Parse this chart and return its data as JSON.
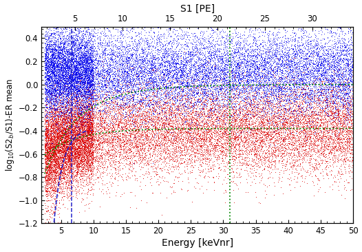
{
  "xlabel": "Energy [keVnr]",
  "ylabel": "log$_{10}$(S2$_b$/S1)-ER mean",
  "xlabel_top": "S1 [PE]",
  "xlim": [
    2,
    50
  ],
  "ylim": [
    -1.2,
    0.5
  ],
  "xticks": [
    5,
    10,
    15,
    20,
    25,
    30,
    35,
    40,
    45,
    50
  ],
  "yticks": [
    -1.2,
    -1.0,
    -0.8,
    -0.6,
    -0.4,
    -0.2,
    0.0,
    0.2,
    0.4
  ],
  "xticks_top": [
    5,
    10,
    15,
    20,
    25,
    30
  ],
  "pe_tick_energies": [
    7.2,
    14.5,
    21.8,
    29.1,
    36.4,
    43.7
  ],
  "vline1_x": 6.6,
  "vline2_x": 31.0,
  "blue_color": "#0000EE",
  "red_color": "#DD0000",
  "green_color": "#008800",
  "blue_dash_color": "#2222CC",
  "n_blue": 20000,
  "n_red": 22000,
  "seed": 12345,
  "figsize": [
    5.26,
    3.66
  ],
  "dpi": 100,
  "bg_color": "#FFFFFF"
}
